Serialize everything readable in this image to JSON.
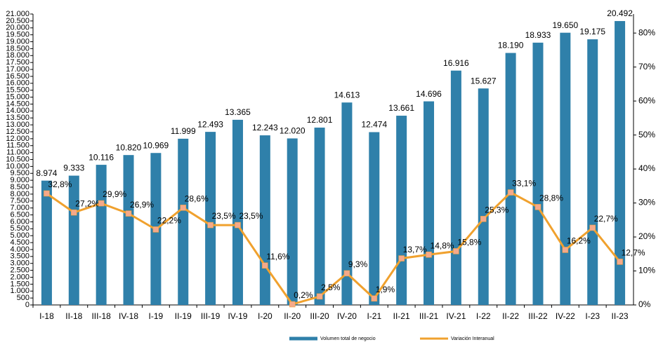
{
  "chart_data": {
    "type": "bar",
    "categories": [
      "I-18",
      "II-18",
      "III-18",
      "IV-18",
      "I-19",
      "II-19",
      "III-19",
      "IV-19",
      "I-20",
      "II-20",
      "III-20",
      "IV-20",
      "I-21",
      "II-21",
      "III-21",
      "IV-21",
      "I-22",
      "II-22",
      "III-22",
      "IV-22",
      "I-23",
      "II-23"
    ],
    "series": [
      {
        "name": "Volumen total de negocio",
        "type": "bar",
        "color": "#2f80aa",
        "values": [
          8974,
          9333,
          10116,
          10820,
          10969,
          11999,
          12493,
          13365,
          12243,
          12020,
          12801,
          14613,
          12474,
          13661,
          14696,
          16916,
          15627,
          18190,
          18933,
          19650,
          19175,
          20492
        ],
        "value_labels": [
          "8.974",
          "9.333",
          "10.116",
          "10.820",
          "10.969",
          "11.999",
          "12.493",
          "13.365",
          "12.243",
          "12.020",
          "12.801",
          "14.613",
          "12.474",
          "13.661",
          "14.696",
          "16.916",
          "15.627",
          "18.190",
          "18.933",
          "19.650",
          "19.175",
          "20.492"
        ]
      },
      {
        "name": "Variación Interanual",
        "type": "line",
        "axis": "y2",
        "color": "#f0a12e",
        "marker_color": "#f5a98a",
        "values": [
          32.8,
          27.2,
          29.9,
          26.9,
          22.2,
          28.6,
          23.5,
          23.5,
          11.6,
          0.2,
          2.5,
          9.3,
          1.9,
          13.7,
          14.8,
          15.8,
          25.3,
          33.1,
          28.8,
          16.2,
          22.7,
          12.7
        ],
        "value_labels": [
          "32,8%",
          "27,2%",
          "29,9%",
          "26,9%",
          "22,2%",
          "28,6%",
          "23,5%",
          "23,5%",
          "11,6%",
          "0,2%",
          "2,5%",
          "9,3%",
          "1,9%",
          "13,7%",
          "14,8%",
          "15,8%",
          "25,3%",
          "33,1%",
          "28,8%",
          "16,2%",
          "22,7%",
          "12,7%"
        ]
      }
    ],
    "ylim": [
      0,
      21000
    ],
    "yticks": [
      0,
      500,
      {
        "value": 1000,
        "label": "1.000"
      },
      {
        "value": 1500,
        "label": "1.500"
      },
      {
        "value": 2000,
        "label": "2.000"
      },
      {
        "value": 2500,
        "label": "2.500"
      },
      {
        "value": 3000,
        "label": "3.000"
      },
      {
        "value": 3500,
        "label": "3.500"
      },
      {
        "value": 4000,
        "label": "4.000"
      },
      {
        "value": 4500,
        "label": "4.500"
      },
      {
        "value": 5000,
        "label": "5.000"
      },
      {
        "value": 5500,
        "label": "5.500"
      },
      {
        "value": 6000,
        "label": "6.000"
      },
      {
        "value": 6500,
        "label": "6.500"
      },
      {
        "value": 7000,
        "label": "7.000"
      },
      {
        "value": 7500,
        "label": "7.500"
      },
      {
        "value": 8000,
        "label": "8.000"
      },
      {
        "value": 8500,
        "label": "8.500"
      },
      {
        "value": 9000,
        "label": "9.000"
      },
      {
        "value": 9500,
        "label": "9.500"
      },
      {
        "value": 10000,
        "label": "10.000"
      },
      {
        "value": 10500,
        "label": "10.500"
      },
      {
        "value": 11000,
        "label": "11.000"
      },
      {
        "value": 11500,
        "label": "11.500"
      },
      {
        "value": 12000,
        "label": "12.000"
      },
      {
        "value": 12500,
        "label": "12.500"
      },
      {
        "value": 13000,
        "label": "13.000"
      },
      {
        "value": 13500,
        "label": "13.500"
      },
      {
        "value": 14000,
        "label": "14.000"
      },
      {
        "value": 14500,
        "label": "14.500"
      },
      {
        "value": 15000,
        "label": "15.000"
      },
      {
        "value": 15500,
        "label": "15.500"
      },
      {
        "value": 16000,
        "label": "16.000"
      },
      {
        "value": 16500,
        "label": "16.500"
      },
      {
        "value": 17000,
        "label": "17.000"
      },
      {
        "value": 17500,
        "label": "17.500"
      },
      {
        "value": 18000,
        "label": "18.000"
      },
      {
        "value": 18500,
        "label": "18.500"
      },
      {
        "value": 19000,
        "label": "19.000"
      },
      {
        "value": 19500,
        "label": "19.500"
      },
      {
        "value": 20000,
        "label": "20.000"
      },
      {
        "value": 20500,
        "label": "20.500"
      },
      {
        "value": 21000,
        "label": "21.000"
      }
    ],
    "y2lim": [
      0,
      85.6
    ],
    "y2ticks": [
      {
        "value": 0,
        "label": "0%"
      },
      {
        "value": 10,
        "label": "10%"
      },
      {
        "value": 20,
        "label": "20%"
      },
      {
        "value": 30,
        "label": "30%"
      },
      {
        "value": 40,
        "label": "40%"
      },
      {
        "value": 50,
        "label": "50%"
      },
      {
        "value": 60,
        "label": "60%"
      },
      {
        "value": 70,
        "label": "70%"
      },
      {
        "value": 80,
        "label": "80%"
      }
    ],
    "legend": "bottom",
    "grid": false
  }
}
